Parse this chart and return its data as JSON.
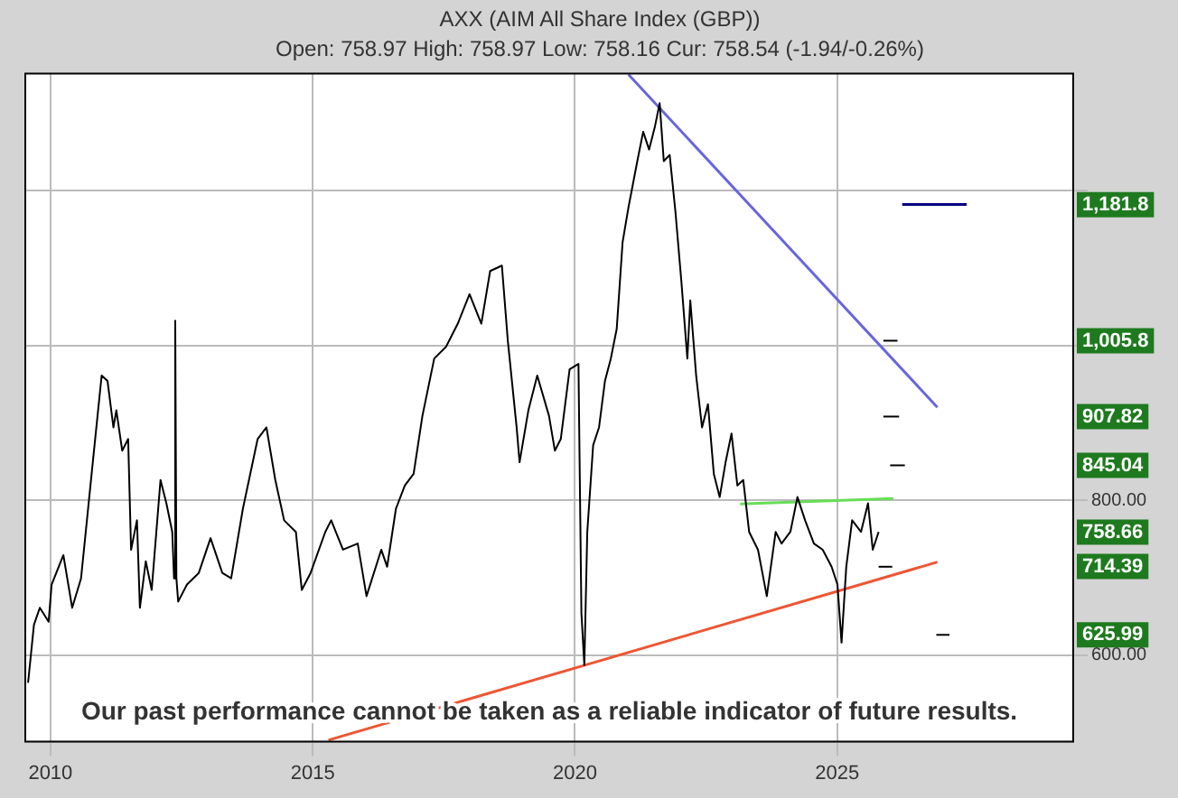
{
  "chart_data": {
    "type": "line",
    "title": "AXX (AIM All Share Index (GBP))",
    "subtitle": "Open: 758.97 High: 758.97 Low: 758.16 Cur: 758.54 (-1.94/-0.26%)",
    "xlim": [
      2009.52,
      2029.5
    ],
    "xticks": [
      2010,
      2015,
      2020,
      2025
    ],
    "ylim": [
      488,
      1351
    ],
    "yticks": [
      {
        "value": 600,
        "label": "600.00"
      },
      {
        "value": 800,
        "label": "800.00"
      },
      {
        "value": 1000,
        "label": null
      },
      {
        "value": 1200,
        "label": null
      }
    ],
    "grid": true,
    "legend": false,
    "series": [
      {
        "type": "line",
        "color": "#000000",
        "x": [
          2009.573,
          2009.685,
          2009.797,
          2009.965,
          2010.022,
          2010.246,
          2010.414,
          2010.583,
          2010.695,
          2010.807,
          2010.976,
          2011.088,
          2011.2,
          2011.256,
          2011.368,
          2011.481,
          2011.537,
          2011.649,
          2011.705,
          2011.817,
          2011.93,
          2012.098,
          2012.21,
          2012.322,
          2012.356,
          2012.379,
          2012.401,
          2012.435,
          2012.603,
          2012.828,
          2013.052,
          2013.276,
          2013.445,
          2013.669,
          2013.95,
          2014.118,
          2014.287,
          2014.455,
          2014.679,
          2014.792,
          2014.96,
          2015.24,
          2015.352,
          2015.577,
          2015.858,
          2016.026,
          2016.307,
          2016.419,
          2016.587,
          2016.756,
          2016.924,
          2017.092,
          2017.317,
          2017.541,
          2017.766,
          2017.99,
          2018.215,
          2018.383,
          2018.607,
          2018.72,
          2018.888,
          2018.944,
          2019.112,
          2019.281,
          2019.505,
          2019.617,
          2019.73,
          2019.898,
          2020.067,
          2020.123,
          2020.179,
          2020.235,
          2020.347,
          2020.459,
          2020.572,
          2020.684,
          2020.796,
          2020.908,
          2021.02,
          2021.189,
          2021.301,
          2021.413,
          2021.526,
          2021.615,
          2021.694,
          2021.806,
          2021.918,
          2022.031,
          2022.143,
          2022.199,
          2022.311,
          2022.423,
          2022.536,
          2022.648,
          2022.76,
          2022.872,
          2022.985,
          2023.097,
          2023.209,
          2023.321,
          2023.49,
          2023.658,
          2023.827,
          2023.939,
          2024.107,
          2024.242,
          2024.388,
          2024.556,
          2024.724,
          2024.893,
          2025.005,
          2025.083,
          2025.173,
          2025.285,
          2025.454,
          2025.588,
          2025.678,
          2025.79
        ],
        "values": [
          564,
          639,
          661,
          643,
          691,
          729,
          661,
          699,
          774,
          849,
          961,
          954,
          894,
          916,
          864,
          879,
          736,
          774,
          661,
          721,
          684,
          826,
          796,
          759,
          699,
          1032,
          699,
          669,
          691,
          706,
          751,
          706,
          699,
          789,
          879,
          894,
          826,
          774,
          759,
          684,
          706,
          759,
          774,
          736,
          744,
          676,
          736,
          714,
          789,
          819,
          834,
          909,
          983,
          998,
          1028,
          1066,
          1028,
          1096,
          1103,
          1006,
          894,
          849,
          916,
          961,
          909,
          864,
          879,
          969,
          976,
          654,
          587,
          759,
          871,
          894,
          954,
          983,
          1021,
          1133,
          1178,
          1238,
          1276,
          1253,
          1283,
          1313,
          1238,
          1246,
          1171,
          1081,
          983,
          1058,
          961,
          894,
          924,
          834,
          804,
          849,
          886,
          819,
          826,
          759,
          736,
          676,
          759,
          744,
          759,
          804,
          774,
          744,
          736,
          714,
          691,
          616,
          714,
          774,
          759,
          796,
          736,
          759
        ]
      },
      {
        "type": "line",
        "color": "#6666dd",
        "x": [
          2021.02,
          2026.91
        ],
        "values": [
          1350,
          920
        ]
      },
      {
        "type": "line",
        "color": "#ee5533",
        "x": [
          2015.3,
          2026.91
        ],
        "values": [
          490,
          720
        ]
      },
      {
        "type": "line",
        "color": "#66dd55",
        "x": [
          2023.15,
          2026.07
        ],
        "values": [
          795,
          802
        ]
      },
      {
        "type": "line",
        "color": "#000080",
        "x": [
          2026.24,
          2027.47
        ],
        "values": [
          1182,
          1182
        ]
      },
      {
        "type": "line",
        "color": "#000000",
        "x": [
          2025.88,
          2026.15
        ],
        "values": [
          1006,
          1006
        ]
      },
      {
        "type": "line",
        "color": "#000000",
        "x": [
          2025.88,
          2026.18
        ],
        "values": [
          908,
          908
        ]
      },
      {
        "type": "line",
        "color": "#000000",
        "x": [
          2026.01,
          2026.29
        ],
        "values": [
          845,
          845
        ]
      },
      {
        "type": "line",
        "color": "#000000",
        "x": [
          2025.79,
          2026.05
        ],
        "values": [
          714,
          714
        ]
      },
      {
        "type": "line",
        "color": "#000000",
        "x": [
          2026.89,
          2027.14
        ],
        "values": [
          626,
          626
        ]
      }
    ],
    "annotations": [
      {
        "text": "1,181.8",
        "y": 1181.8
      },
      {
        "text": "1,005.8",
        "y": 1005.8
      },
      {
        "text": "907.82",
        "y": 907.82
      },
      {
        "text": "845.04",
        "y": 845.04
      },
      {
        "text": "758.66",
        "y": 758.66
      },
      {
        "text": "714.39",
        "y": 714.39
      },
      {
        "text": "625.99",
        "y": 625.99
      },
      "Our past performance cannot be taken as a reliable indicator of future results."
    ]
  }
}
